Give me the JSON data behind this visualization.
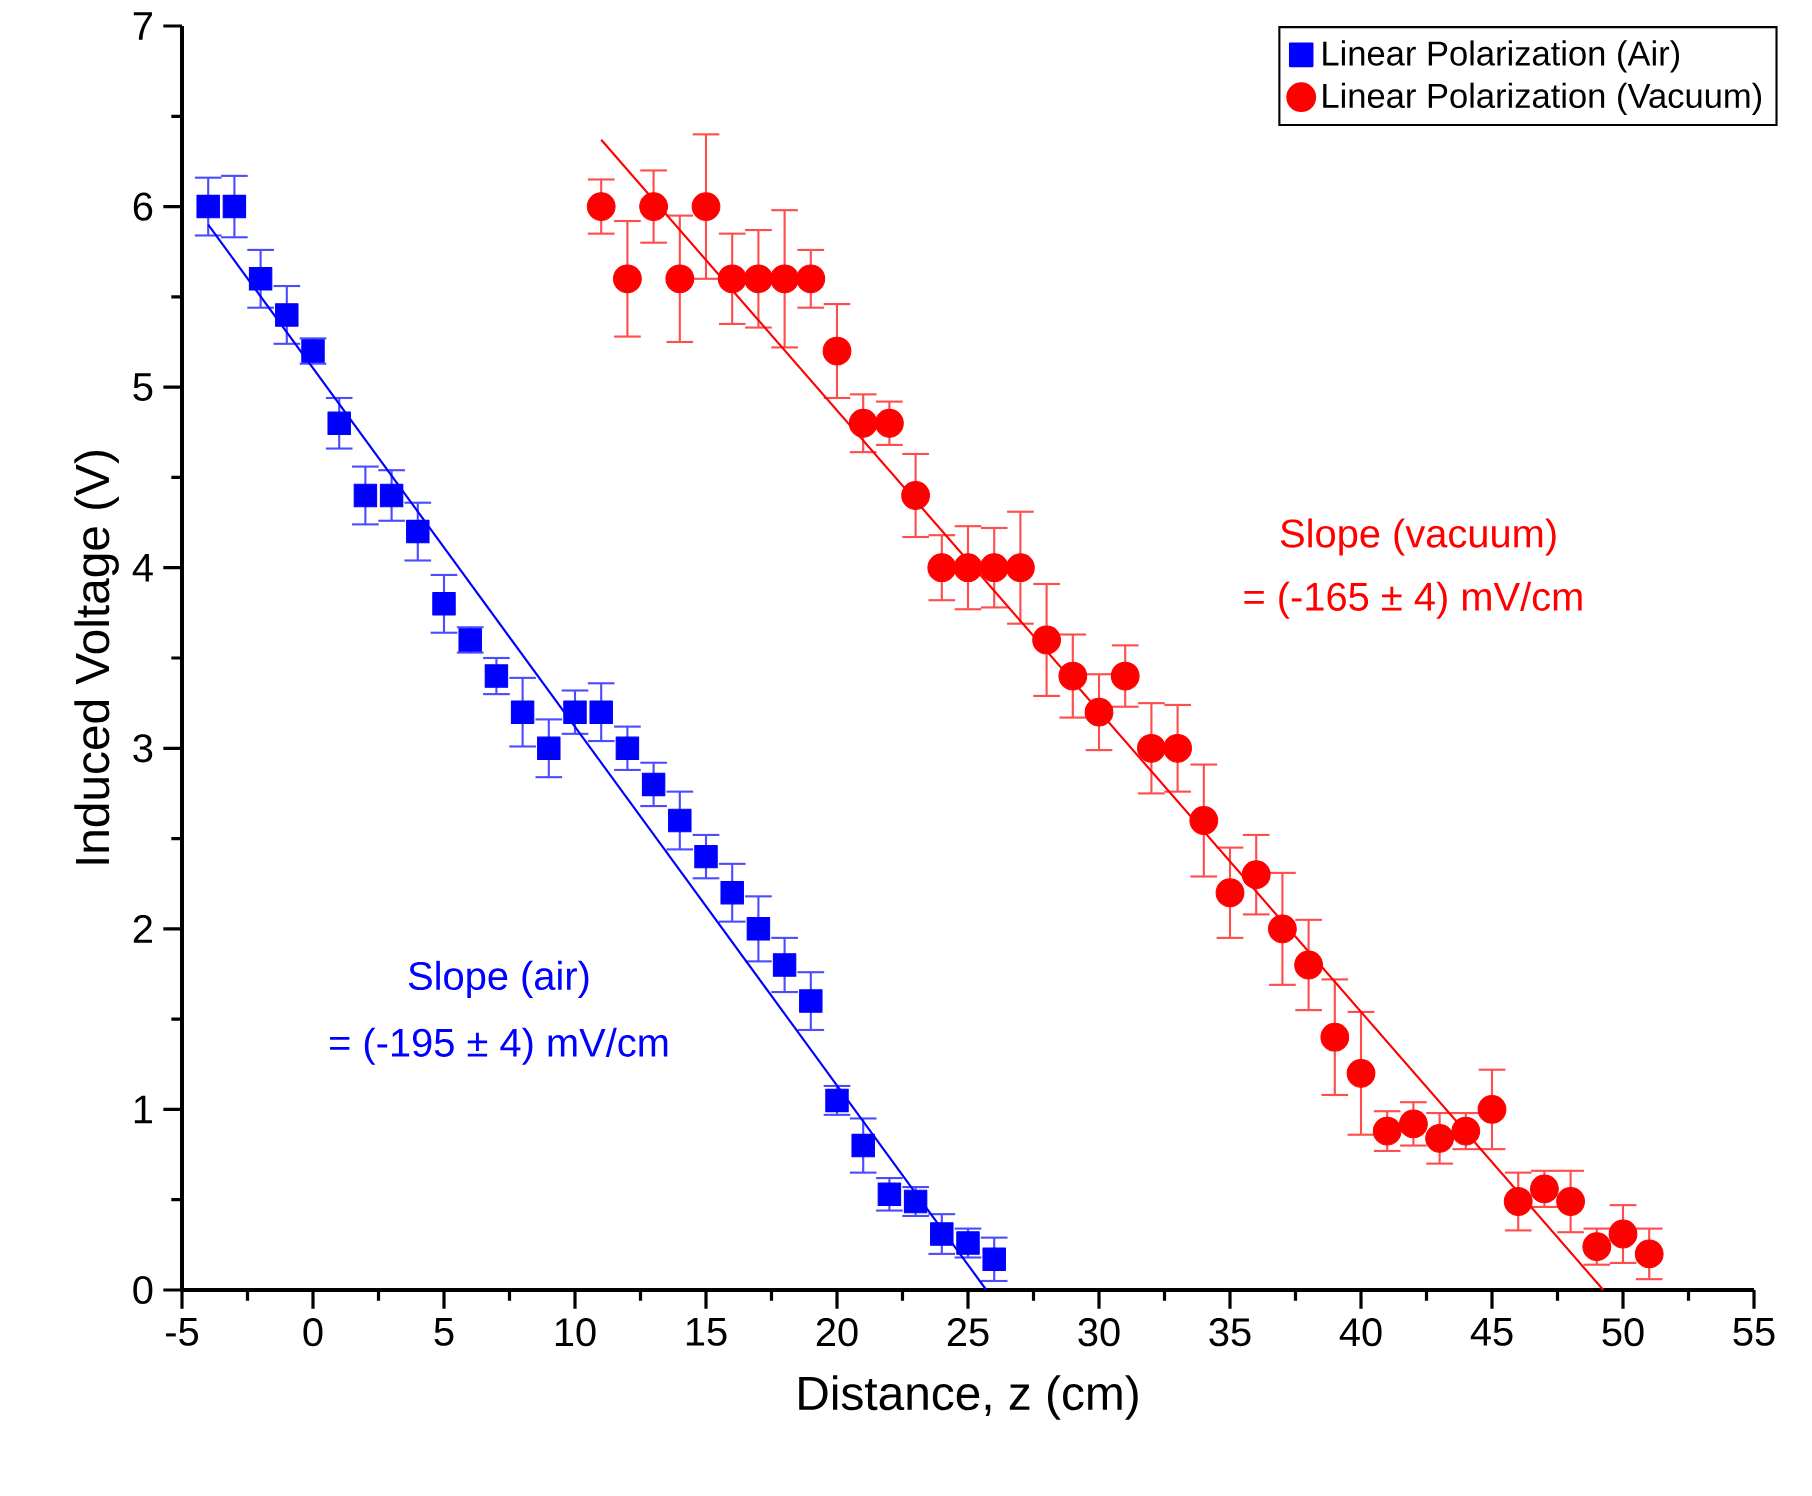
{
  "chart_data": {
    "type": "scatter",
    "xlabel": "Distance, z (cm)",
    "ylabel": "Induced Voltage (V)",
    "xlim": [
      -5,
      55
    ],
    "xticks": [
      -5,
      0,
      5,
      10,
      15,
      20,
      25,
      30,
      35,
      40,
      45,
      50,
      55
    ],
    "ylim": [
      0,
      7
    ],
    "yticks": [
      0,
      1,
      2,
      3,
      4,
      5,
      6,
      7
    ],
    "legend": "top right",
    "series": [
      {
        "name": "Linear Polarization (Air)",
        "color": "#0000ff",
        "marker": "square",
        "x": [
          -4,
          -3,
          -2,
          -1,
          0,
          1,
          2,
          3,
          4,
          5,
          6,
          7,
          8,
          9,
          10,
          11,
          12,
          13,
          14,
          15,
          16,
          17,
          18,
          19,
          20,
          21,
          22,
          23,
          24,
          25,
          26
        ],
        "values": [
          6.0,
          6.0,
          5.6,
          5.4,
          5.2,
          4.8,
          4.4,
          4.4,
          4.2,
          3.8,
          3.6,
          3.4,
          3.2,
          3.0,
          3.2,
          3.2,
          3.0,
          2.8,
          2.6,
          2.4,
          2.2,
          2.0,
          1.8,
          1.6,
          1.05,
          0.8,
          0.53,
          0.49,
          0.31,
          0.26,
          0.17
        ],
        "errors": [
          0.16,
          0.17,
          0.16,
          0.16,
          0.07,
          0.14,
          0.16,
          0.14,
          0.16,
          0.16,
          0.07,
          0.1,
          0.19,
          0.16,
          0.12,
          0.16,
          0.12,
          0.12,
          0.16,
          0.12,
          0.16,
          0.18,
          0.15,
          0.16,
          0.08,
          0.15,
          0.09,
          0.08,
          0.11,
          0.08,
          0.12
        ]
      },
      {
        "name": "Linear Polarization (Vacuum)",
        "color": "#ff0000",
        "marker": "circle",
        "x": [
          11,
          12,
          13,
          14,
          15,
          16,
          17,
          18,
          19,
          20,
          21,
          22,
          23,
          24,
          25,
          26,
          27,
          28,
          29,
          30,
          31,
          32,
          33,
          34,
          35,
          36,
          37,
          38,
          39,
          40,
          41,
          42,
          43,
          44,
          45,
          46,
          47,
          48,
          49,
          50,
          51
        ],
        "values": [
          6.0,
          5.6,
          6.0,
          5.6,
          6.0,
          5.6,
          5.6,
          5.6,
          5.6,
          5.2,
          4.8,
          4.8,
          4.4,
          4.0,
          4.0,
          4.0,
          4.0,
          3.6,
          3.4,
          3.2,
          3.4,
          3.0,
          3.0,
          2.6,
          2.2,
          2.3,
          2.0,
          1.8,
          1.4,
          1.2,
          0.88,
          0.92,
          0.84,
          0.88,
          1.0,
          0.49,
          0.56,
          0.49,
          0.24,
          0.31,
          0.2
        ],
        "errors": [
          0.15,
          0.32,
          0.2,
          0.35,
          0.4,
          0.25,
          0.27,
          0.38,
          0.16,
          0.26,
          0.16,
          0.12,
          0.23,
          0.18,
          0.23,
          0.22,
          0.31,
          0.31,
          0.23,
          0.21,
          0.17,
          0.25,
          0.24,
          0.31,
          0.25,
          0.22,
          0.31,
          0.25,
          0.32,
          0.34,
          0.11,
          0.12,
          0.14,
          0.1,
          0.22,
          0.16,
          0.1,
          0.17,
          0.1,
          0.16,
          0.14
        ]
      },
      {
        "type": "line",
        "color": "#0000ff",
        "marker": "none",
        "x": [
          -4,
          25.7
        ],
        "values": [
          5.9,
          0
        ]
      },
      {
        "type": "line",
        "color": "#ff0000",
        "marker": "none",
        "x": [
          11,
          49.25
        ],
        "values": [
          6.37,
          0
        ]
      }
    ],
    "annotations": [
      "Slope (air)",
      "= (-195 ± 4) mV/cm",
      "Slope (vacuum)",
      "= (-165 ± 4) mV/cm"
    ]
  }
}
